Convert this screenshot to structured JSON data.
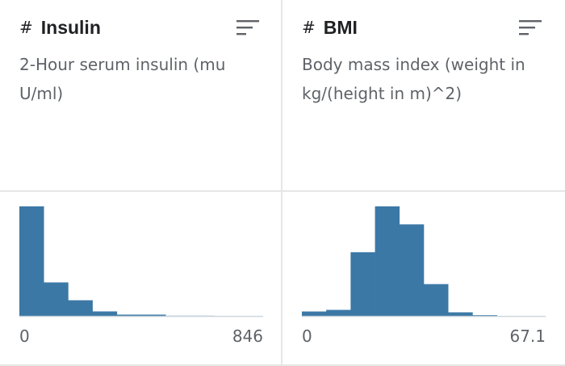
{
  "columns": [
    {
      "type_icon": "#",
      "name": "Insulin",
      "description": "2-Hour serum insulin (mu U/ml)",
      "sort_icon": "sort-lines-icon",
      "axis_min": "0",
      "axis_max": "846"
    },
    {
      "type_icon": "#",
      "name": "BMI",
      "description": "Body mass index (weight in kg/(height in m)^2)",
      "sort_icon": "sort-lines-icon",
      "axis_min": "0",
      "axis_max": "67.1"
    }
  ],
  "colors": {
    "bar": "#3b78a6",
    "divider": "#e6e6e6",
    "baseline": "#cfd8de"
  },
  "chart_data": [
    {
      "type": "bar",
      "title": "",
      "xlabel": "",
      "ylabel": "",
      "xlim": [
        0,
        846
      ],
      "bin_edges": [
        0,
        84.6,
        169.2,
        253.8,
        338.4,
        423.0,
        507.6,
        592.2,
        676.8,
        761.4,
        846
      ],
      "values": [
        480,
        147,
        69,
        20,
        6,
        6,
        1,
        1,
        0,
        0
      ]
    },
    {
      "type": "bar",
      "title": "",
      "xlabel": "",
      "ylabel": "",
      "xlim": [
        0,
        67.1
      ],
      "bin_edges": [
        0,
        6.71,
        13.42,
        20.13,
        26.84,
        33.55,
        40.26,
        46.97,
        53.68,
        60.39,
        67.1
      ],
      "values": [
        11,
        15,
        156,
        268,
        224,
        78,
        9,
        2,
        0,
        0
      ]
    }
  ]
}
